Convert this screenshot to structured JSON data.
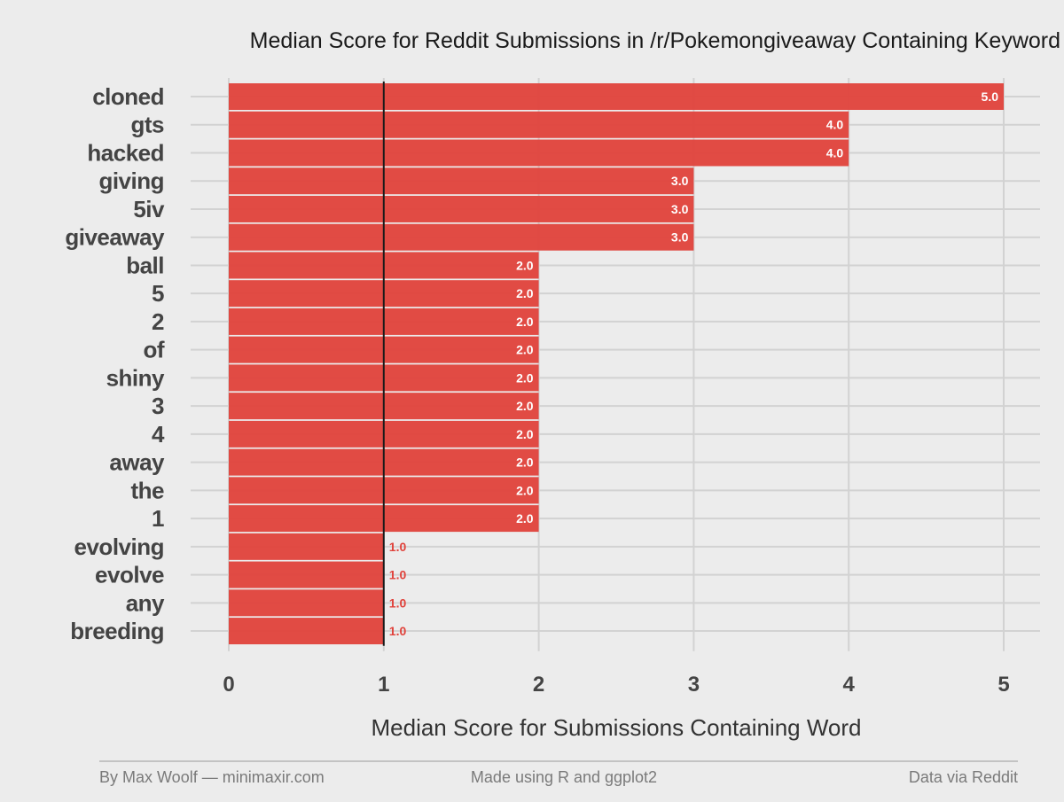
{
  "chart_data": {
    "type": "bar",
    "orientation": "horizontal",
    "title": "Median Score for Reddit Submissions in /r/Pokemongiveaway Containing Keyword",
    "xlabel": "Median Score for Submissions Containing Word",
    "ylabel": "",
    "xlim": [
      0,
      5
    ],
    "x_ticks": [
      "0",
      "1",
      "2",
      "3",
      "4",
      "5"
    ],
    "reference_line": 1,
    "grid": true,
    "bar_color": "#e0423b",
    "reference_line_color": "#1a1a1a",
    "categories": [
      "cloned",
      "gts",
      "hacked",
      "giving",
      "5iv",
      "giveaway",
      "ball",
      "5",
      "2",
      "of",
      "shiny",
      "3",
      "4",
      "away",
      "the",
      "1",
      "evolving",
      "evolve",
      "any",
      "breeding"
    ],
    "values": [
      5.0,
      4.0,
      4.0,
      3.0,
      3.0,
      3.0,
      2.0,
      2.0,
      2.0,
      2.0,
      2.0,
      2.0,
      2.0,
      2.0,
      2.0,
      2.0,
      1.0,
      1.0,
      1.0,
      1.0
    ],
    "data_labels": [
      "5.0",
      "4.0",
      "4.0",
      "3.0",
      "3.0",
      "3.0",
      "2.0",
      "2.0",
      "2.0",
      "2.0",
      "2.0",
      "2.0",
      "2.0",
      "2.0",
      "2.0",
      "2.0",
      "1.0",
      "1.0",
      "1.0",
      "1.0"
    ]
  },
  "footer": {
    "left": "By Max Woolf — minimaxir.com",
    "center": "Made using R and ggplot2",
    "right": "Data via Reddit"
  }
}
